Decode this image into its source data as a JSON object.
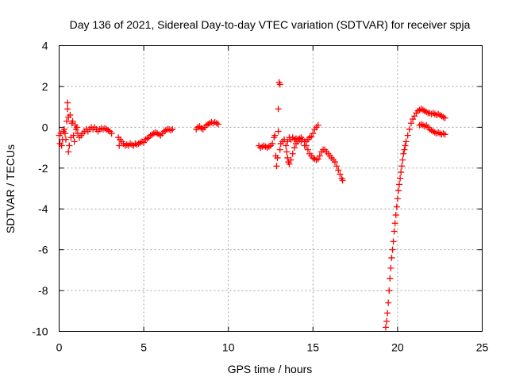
{
  "chart_data": {
    "type": "scatter",
    "title": "Day 136 of 2021, Sidereal Day-to-day VTEC variation (SDTVAR) for receiver spja",
    "xlabel": "GPS time / hours",
    "ylabel": "SDTVAR / TECUs",
    "xlim": [
      0,
      25
    ],
    "ylim": [
      -10,
      4
    ],
    "x_ticks": [
      0,
      5,
      10,
      15,
      20,
      25
    ],
    "y_ticks": [
      -10,
      -8,
      -6,
      -4,
      -2,
      0,
      2,
      4
    ],
    "x_tick_labels": [
      "0",
      "5",
      "10",
      "15",
      "20",
      "25"
    ],
    "y_tick_labels": [
      "-10",
      "-8",
      "-6",
      "-4",
      "-2",
      "0",
      "2",
      "4"
    ],
    "grid": true,
    "marker": "plus",
    "color": "#ff0000",
    "series": [
      {
        "name": "SDTVAR",
        "points": [
          [
            0.0,
            -0.4
          ],
          [
            0.05,
            -0.8
          ],
          [
            0.1,
            -0.3
          ],
          [
            0.15,
            -0.9
          ],
          [
            0.2,
            -0.6
          ],
          [
            0.25,
            -0.2
          ],
          [
            0.3,
            -0.1
          ],
          [
            0.35,
            -0.3
          ],
          [
            0.4,
            -0.6
          ],
          [
            0.45,
            0.3
          ],
          [
            0.5,
            1.2
          ],
          [
            0.5,
            0.9
          ],
          [
            0.55,
            0.5
          ],
          [
            0.55,
            -1.2
          ],
          [
            0.6,
            -0.9
          ],
          [
            0.65,
            0.6
          ],
          [
            0.7,
            -0.5
          ],
          [
            0.75,
            0.2
          ],
          [
            0.8,
            0.3
          ],
          [
            0.85,
            -0.4
          ],
          [
            0.9,
            -0.7
          ],
          [
            0.95,
            0.1
          ],
          [
            1.0,
            -0.1
          ],
          [
            1.05,
            0.0
          ],
          [
            1.1,
            -0.3
          ],
          [
            1.2,
            -0.5
          ],
          [
            1.3,
            -0.4
          ],
          [
            1.4,
            -0.3
          ],
          [
            1.5,
            -0.2
          ],
          [
            1.6,
            -0.1
          ],
          [
            1.7,
            -0.2
          ],
          [
            1.8,
            -0.1
          ],
          [
            1.9,
            0.0
          ],
          [
            2.0,
            -0.1
          ],
          [
            2.1,
            0.0
          ],
          [
            2.2,
            -0.1
          ],
          [
            2.3,
            -0.2
          ],
          [
            2.4,
            -0.1
          ],
          [
            2.5,
            -0.05
          ],
          [
            2.6,
            -0.1
          ],
          [
            2.7,
            -0.05
          ],
          [
            2.8,
            -0.1
          ],
          [
            2.9,
            -0.15
          ],
          [
            3.0,
            -0.2
          ],
          [
            3.1,
            -0.3
          ],
          [
            3.5,
            -0.5
          ],
          [
            3.55,
            -0.9
          ],
          [
            3.6,
            -0.6
          ],
          [
            3.7,
            -0.7
          ],
          [
            3.8,
            -0.8
          ],
          [
            3.9,
            -0.9
          ],
          [
            4.0,
            -0.85
          ],
          [
            4.1,
            -0.9
          ],
          [
            4.2,
            -0.8
          ],
          [
            4.3,
            -0.85
          ],
          [
            4.4,
            -0.9
          ],
          [
            4.5,
            -0.8
          ],
          [
            4.6,
            -0.85
          ],
          [
            4.7,
            -0.8
          ],
          [
            4.8,
            -0.75
          ],
          [
            4.9,
            -0.7
          ],
          [
            5.0,
            -0.75
          ],
          [
            5.1,
            -0.6
          ],
          [
            5.2,
            -0.55
          ],
          [
            5.3,
            -0.5
          ],
          [
            5.4,
            -0.4
          ],
          [
            5.5,
            -0.35
          ],
          [
            5.6,
            -0.3
          ],
          [
            5.7,
            -0.25
          ],
          [
            5.8,
            -0.3
          ],
          [
            5.9,
            -0.35
          ],
          [
            6.0,
            -0.4
          ],
          [
            6.1,
            -0.3
          ],
          [
            6.2,
            -0.2
          ],
          [
            6.3,
            -0.15
          ],
          [
            6.4,
            -0.1
          ],
          [
            6.5,
            -0.1
          ],
          [
            6.6,
            -0.15
          ],
          [
            6.7,
            -0.1
          ],
          [
            8.1,
            -0.1
          ],
          [
            8.2,
            0.0
          ],
          [
            8.3,
            0.05
          ],
          [
            8.4,
            -0.05
          ],
          [
            8.5,
            -0.1
          ],
          [
            8.6,
            0.0
          ],
          [
            8.7,
            0.1
          ],
          [
            8.8,
            0.15
          ],
          [
            8.9,
            0.2
          ],
          [
            9.0,
            0.25
          ],
          [
            9.1,
            0.2
          ],
          [
            9.2,
            0.25
          ],
          [
            9.3,
            0.2
          ],
          [
            9.4,
            0.15
          ],
          [
            11.8,
            -0.9
          ],
          [
            11.9,
            -1.0
          ],
          [
            12.0,
            -0.95
          ],
          [
            12.1,
            -0.9
          ],
          [
            12.2,
            -0.95
          ],
          [
            12.3,
            -1.0
          ],
          [
            12.4,
            -0.95
          ],
          [
            12.5,
            -0.9
          ],
          [
            12.6,
            -0.8
          ],
          [
            12.7,
            -0.5
          ],
          [
            12.75,
            -0.4
          ],
          [
            12.8,
            -1.4
          ],
          [
            12.85,
            -1.9
          ],
          [
            12.9,
            -1.5
          ],
          [
            12.95,
            -0.2
          ],
          [
            12.95,
            0.9
          ],
          [
            13.0,
            2.2
          ],
          [
            13.05,
            2.1
          ],
          [
            13.05,
            -1.1
          ],
          [
            13.1,
            -0.8
          ],
          [
            13.2,
            -0.7
          ],
          [
            13.3,
            -0.6
          ],
          [
            13.4,
            -0.9
          ],
          [
            13.45,
            -1.2
          ],
          [
            13.5,
            -1.5
          ],
          [
            13.55,
            -1.7
          ],
          [
            13.6,
            -1.8
          ],
          [
            13.7,
            -1.6
          ],
          [
            13.8,
            -1.3
          ],
          [
            13.9,
            -1.0
          ],
          [
            14.0,
            -0.8
          ],
          [
            14.1,
            -0.7
          ],
          [
            14.2,
            -0.6
          ],
          [
            14.3,
            -0.7
          ],
          [
            13.5,
            -0.7
          ],
          [
            13.6,
            -0.5
          ],
          [
            13.7,
            -0.6
          ],
          [
            13.8,
            -0.5
          ],
          [
            13.9,
            -0.6
          ],
          [
            14.0,
            -0.55
          ],
          [
            14.1,
            -0.6
          ],
          [
            14.2,
            -0.55
          ],
          [
            14.3,
            -0.5
          ],
          [
            14.4,
            -0.6
          ],
          [
            14.5,
            -0.7
          ],
          [
            14.6,
            -0.9
          ],
          [
            14.7,
            -1.1
          ],
          [
            14.8,
            -1.3
          ],
          [
            14.9,
            -1.4
          ],
          [
            15.0,
            -1.5
          ],
          [
            15.1,
            -1.55
          ],
          [
            15.2,
            -1.6
          ],
          [
            15.3,
            -1.55
          ],
          [
            15.4,
            -1.4
          ],
          [
            15.5,
            -1.2
          ],
          [
            15.6,
            -1.1
          ],
          [
            15.7,
            -1.1
          ],
          [
            15.8,
            -1.2
          ],
          [
            15.9,
            -1.3
          ],
          [
            16.0,
            -1.4
          ],
          [
            16.1,
            -1.5
          ],
          [
            16.2,
            -1.6
          ],
          [
            16.3,
            -1.7
          ],
          [
            16.4,
            -1.9
          ],
          [
            16.5,
            -2.1
          ],
          [
            16.6,
            -2.3
          ],
          [
            16.7,
            -2.5
          ],
          [
            16.75,
            -2.6
          ],
          [
            14.5,
            -0.9
          ],
          [
            14.6,
            -0.7
          ],
          [
            14.7,
            -0.6
          ],
          [
            14.8,
            -0.5
          ],
          [
            14.9,
            -0.45
          ],
          [
            15.0,
            -0.3
          ],
          [
            15.1,
            -0.1
          ],
          [
            15.2,
            0.0
          ],
          [
            15.3,
            0.1
          ],
          [
            19.3,
            -9.8
          ],
          [
            19.35,
            -9.5
          ],
          [
            19.4,
            -9.1
          ],
          [
            19.45,
            -8.6
          ],
          [
            19.5,
            -8.0
          ],
          [
            19.55,
            -7.4
          ],
          [
            19.6,
            -6.9
          ],
          [
            19.65,
            -6.4
          ],
          [
            19.7,
            -6.0
          ],
          [
            19.75,
            -5.6
          ],
          [
            19.8,
            -5.1
          ],
          [
            19.85,
            -4.7
          ],
          [
            19.9,
            -4.3
          ],
          [
            19.95,
            -3.9
          ],
          [
            20.0,
            -3.5
          ],
          [
            20.05,
            -3.1
          ],
          [
            20.1,
            -2.8
          ],
          [
            20.15,
            -2.5
          ],
          [
            20.2,
            -2.2
          ],
          [
            20.25,
            -1.9
          ],
          [
            20.3,
            -1.6
          ],
          [
            20.35,
            -1.3
          ],
          [
            20.4,
            -1.1
          ],
          [
            20.45,
            -0.9
          ],
          [
            20.5,
            -0.7
          ],
          [
            20.6,
            -0.4
          ],
          [
            20.7,
            -0.1
          ],
          [
            20.8,
            0.2
          ],
          [
            20.9,
            0.4
          ],
          [
            21.0,
            0.55
          ],
          [
            21.1,
            0.7
          ],
          [
            21.2,
            0.8
          ],
          [
            21.3,
            0.85
          ],
          [
            21.4,
            0.9
          ],
          [
            21.5,
            0.85
          ],
          [
            21.6,
            0.8
          ],
          [
            21.7,
            0.75
          ],
          [
            21.8,
            0.7
          ],
          [
            21.9,
            0.7
          ],
          [
            22.0,
            0.65
          ],
          [
            22.1,
            0.7
          ],
          [
            22.2,
            0.65
          ],
          [
            22.3,
            0.6
          ],
          [
            22.4,
            0.65
          ],
          [
            22.5,
            0.6
          ],
          [
            22.6,
            0.55
          ],
          [
            22.7,
            0.5
          ],
          [
            22.8,
            0.45
          ],
          [
            21.3,
            0.1
          ],
          [
            21.4,
            0.15
          ],
          [
            21.5,
            0.1
          ],
          [
            21.6,
            0.05
          ],
          [
            21.7,
            0.1
          ],
          [
            21.8,
            0.0
          ],
          [
            21.9,
            -0.1
          ],
          [
            22.0,
            -0.15
          ],
          [
            22.1,
            -0.2
          ],
          [
            22.2,
            -0.25
          ],
          [
            22.3,
            -0.3
          ],
          [
            22.4,
            -0.25
          ],
          [
            22.5,
            -0.3
          ],
          [
            22.6,
            -0.35
          ],
          [
            22.7,
            -0.3
          ],
          [
            22.8,
            -0.35
          ]
        ]
      }
    ]
  }
}
